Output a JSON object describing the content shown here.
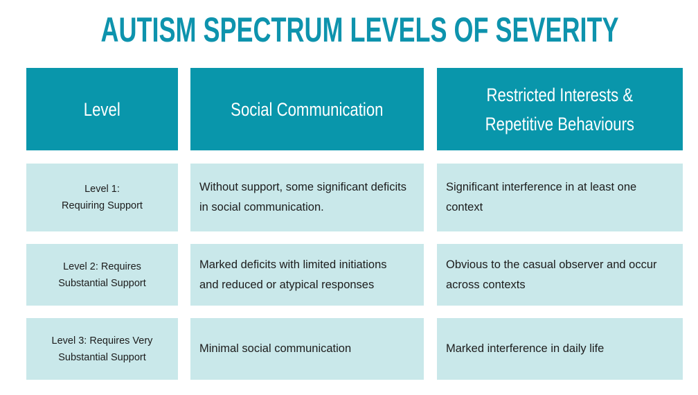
{
  "title": "AUTISM SPECTRUM LEVELS OF SEVERITY",
  "table": {
    "header": [
      "Level",
      "Social Communication",
      "Restricted Interests &\nRepetitive Behaviours"
    ],
    "rows": [
      [
        "Level 1:\nRequiring Support",
        "Without support, some significant deficits\nin social communication.",
        "Significant interference in at least one\ncontext"
      ],
      [
        "Level 2: Requires\nSubstantial Support",
        "Marked deficits with limited initiations\nand reduced or atypical responses",
        "Obvious to the casual observer and occur\nacross contexts"
      ],
      [
        "Level 3: Requires Very\nSubstantial Support",
        "Minimal social communication",
        "Marked interference in daily life"
      ]
    ]
  }
}
